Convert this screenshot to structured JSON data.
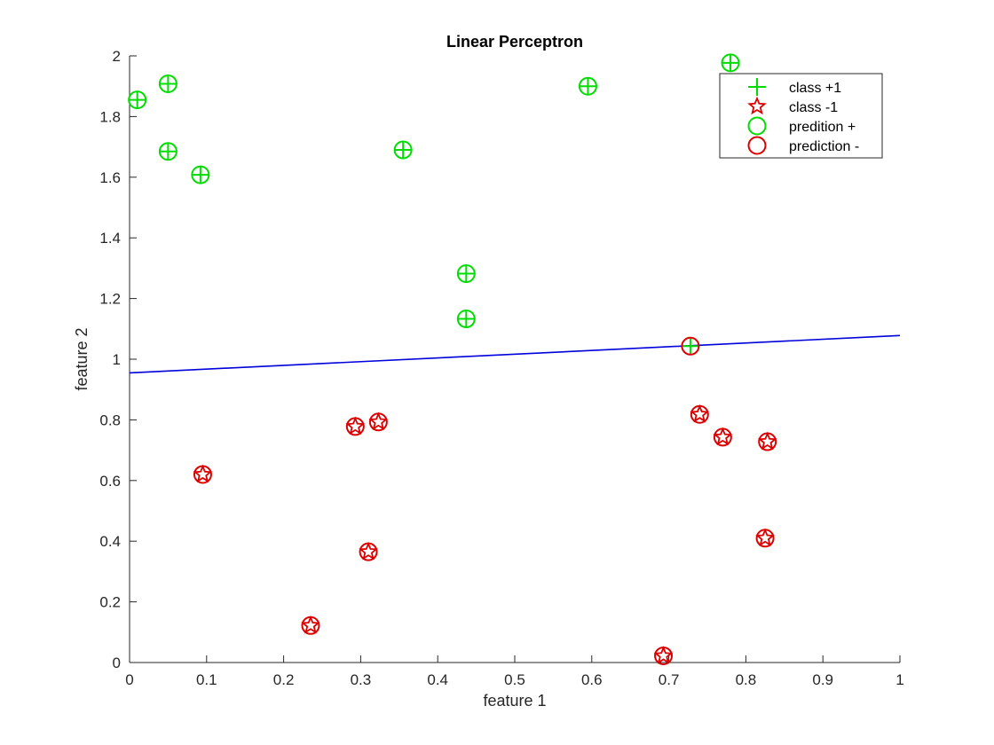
{
  "chart_data": {
    "type": "scatter",
    "title": "Linear Perceptron",
    "xlabel": "feature 1",
    "ylabel": "feature 2",
    "xlim": [
      0,
      1
    ],
    "ylim": [
      0,
      2
    ],
    "xticks": [
      0,
      0.1,
      0.2,
      0.3,
      0.4,
      0.5,
      0.6,
      0.7,
      0.8,
      0.9,
      1
    ],
    "xtick_labels": [
      "0",
      "0.1",
      "0.2",
      "0.3",
      "0.4",
      "0.5",
      "0.6",
      "0.7",
      "0.8",
      "0.9",
      "1"
    ],
    "yticks": [
      0,
      0.2,
      0.4,
      0.6,
      0.8,
      1,
      1.2,
      1.4,
      1.6,
      1.8,
      2
    ],
    "ytick_labels": [
      "0",
      "0.2",
      "0.4",
      "0.6",
      "0.8",
      "1",
      "1.2",
      "1.4",
      "1.6",
      "1.8",
      "2"
    ],
    "grid": false,
    "legend_position": "top-right",
    "series": [
      {
        "name": "class +1",
        "marker": "plus",
        "color": "#00dd00",
        "points": [
          [
            0.01,
            1.855
          ],
          [
            0.05,
            1.908
          ],
          [
            0.05,
            1.685
          ],
          [
            0.092,
            1.608
          ],
          [
            0.355,
            1.69
          ],
          [
            0.437,
            1.282
          ],
          [
            0.437,
            1.133
          ],
          [
            0.595,
            1.9
          ],
          [
            0.78,
            1.977
          ],
          [
            0.728,
            1.043
          ]
        ]
      },
      {
        "name": "class -1",
        "marker": "star",
        "color": "#dd0000",
        "points": [
          [
            0.095,
            0.62
          ],
          [
            0.235,
            0.122
          ],
          [
            0.293,
            0.778
          ],
          [
            0.323,
            0.793
          ],
          [
            0.31,
            0.365
          ],
          [
            0.693,
            0.022
          ],
          [
            0.74,
            0.818
          ],
          [
            0.77,
            0.743
          ],
          [
            0.828,
            0.728
          ],
          [
            0.825,
            0.41
          ]
        ]
      },
      {
        "name": "predition +",
        "marker": "circle",
        "color": "#00dd00",
        "points": [
          [
            0.01,
            1.855
          ],
          [
            0.05,
            1.908
          ],
          [
            0.05,
            1.685
          ],
          [
            0.092,
            1.608
          ],
          [
            0.355,
            1.69
          ],
          [
            0.437,
            1.282
          ],
          [
            0.437,
            1.133
          ],
          [
            0.595,
            1.9
          ],
          [
            0.78,
            1.977
          ]
        ]
      },
      {
        "name": "prediction -",
        "marker": "circle",
        "color": "#dd0000",
        "points": [
          [
            0.728,
            1.043
          ],
          [
            0.095,
            0.62
          ],
          [
            0.235,
            0.122
          ],
          [
            0.293,
            0.778
          ],
          [
            0.323,
            0.793
          ],
          [
            0.31,
            0.365
          ],
          [
            0.693,
            0.022
          ],
          [
            0.74,
            0.818
          ],
          [
            0.77,
            0.743
          ],
          [
            0.828,
            0.728
          ],
          [
            0.825,
            0.41
          ]
        ]
      }
    ],
    "decision_boundary": {
      "color": "#0000dd",
      "points": [
        [
          0,
          0.955
        ],
        [
          1,
          1.078
        ]
      ]
    }
  }
}
